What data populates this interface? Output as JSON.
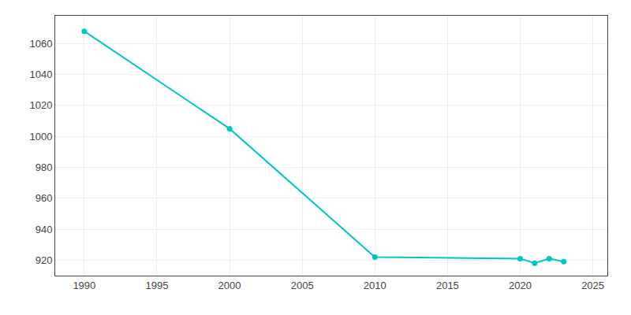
{
  "chart_data": {
    "type": "line",
    "x": [
      1990,
      2000,
      2010,
      2020,
      2021,
      2022,
      2023
    ],
    "values": [
      1068,
      1005,
      922,
      921,
      918,
      921,
      919
    ],
    "color": "#00C5C5",
    "marker": "circle",
    "xlim": [
      1988,
      2026
    ],
    "ylim": [
      910,
      1078
    ],
    "xticks": [
      1990,
      1995,
      2000,
      2005,
      2010,
      2015,
      2020,
      2025
    ],
    "yticks": [
      920,
      940,
      960,
      980,
      1000,
      1020,
      1040,
      1060
    ],
    "grid": true
  }
}
